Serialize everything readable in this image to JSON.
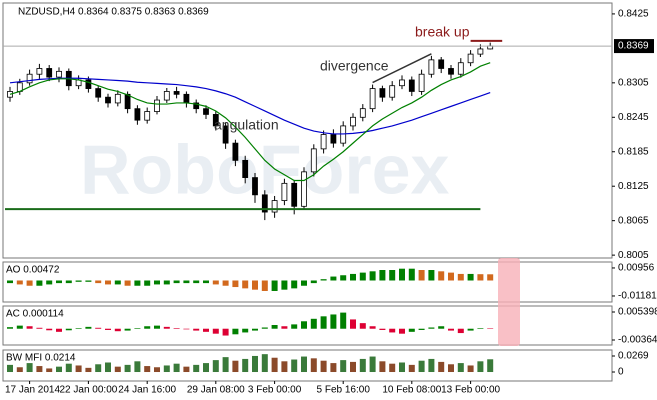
{
  "chart_data": [
    {
      "type": "candlestick",
      "title": "NZDUSD,H4 0.8364 0.8375 0.8363 0.8369",
      "watermark": "RoboForex",
      "annotations": [
        "divergence",
        "angulation",
        "break up"
      ],
      "support_level": 0.8085,
      "breakout_level": 0.8378,
      "current_price": 0.8369,
      "ylim": [
        0.8,
        0.8444
      ],
      "yticks": [
        0.8425,
        0.8305,
        0.8245,
        0.8185,
        0.8125,
        0.8065,
        0.8005
      ],
      "open": [
        0.828,
        0.829,
        0.8305,
        0.832,
        0.833,
        0.8315,
        0.8325,
        0.83,
        0.831,
        0.8295,
        0.828,
        0.827,
        0.8285,
        0.826,
        0.824,
        0.8255,
        0.8275,
        0.829,
        0.8285,
        0.827,
        0.826,
        0.825,
        0.823,
        0.82,
        0.817,
        0.814,
        0.811,
        0.808,
        0.81,
        0.813,
        0.809,
        0.815,
        0.819,
        0.8215,
        0.82,
        0.823,
        0.8245,
        0.826,
        0.8295,
        0.828,
        0.83,
        0.831,
        0.829,
        0.832,
        0.8345,
        0.833,
        0.832,
        0.834,
        0.8355,
        0.8364
      ],
      "high": [
        0.8298,
        0.8312,
        0.8328,
        0.8338,
        0.8336,
        0.8332,
        0.833,
        0.8318,
        0.8316,
        0.83,
        0.8286,
        0.8292,
        0.829,
        0.8266,
        0.8262,
        0.8282,
        0.8296,
        0.8298,
        0.829,
        0.8276,
        0.8266,
        0.8256,
        0.8236,
        0.8206,
        0.8178,
        0.8148,
        0.8118,
        0.8108,
        0.8138,
        0.8136,
        0.8158,
        0.8198,
        0.8222,
        0.8224,
        0.8238,
        0.8252,
        0.8268,
        0.8302,
        0.83,
        0.8308,
        0.8318,
        0.8316,
        0.8328,
        0.8352,
        0.835,
        0.8336,
        0.8348,
        0.8362,
        0.8372,
        0.8375
      ],
      "low": [
        0.8272,
        0.8284,
        0.83,
        0.8312,
        0.8308,
        0.8306,
        0.8292,
        0.8294,
        0.8288,
        0.8272,
        0.8262,
        0.8264,
        0.8252,
        0.8232,
        0.8234,
        0.825,
        0.827,
        0.8278,
        0.8262,
        0.8252,
        0.8242,
        0.8222,
        0.819,
        0.816,
        0.813,
        0.8096,
        0.8066,
        0.807,
        0.8092,
        0.8076,
        0.8084,
        0.8142,
        0.8182,
        0.8192,
        0.8194,
        0.8222,
        0.8238,
        0.8254,
        0.8272,
        0.8274,
        0.8294,
        0.8282,
        0.8284,
        0.8314,
        0.8322,
        0.8312,
        0.8314,
        0.8334,
        0.835,
        0.8363
      ],
      "close": [
        0.829,
        0.8305,
        0.832,
        0.833,
        0.8315,
        0.8325,
        0.83,
        0.831,
        0.8295,
        0.828,
        0.827,
        0.8285,
        0.826,
        0.824,
        0.8255,
        0.8275,
        0.829,
        0.8285,
        0.827,
        0.826,
        0.825,
        0.823,
        0.82,
        0.817,
        0.814,
        0.811,
        0.808,
        0.81,
        0.813,
        0.809,
        0.815,
        0.819,
        0.8215,
        0.82,
        0.823,
        0.8245,
        0.826,
        0.8295,
        0.828,
        0.83,
        0.831,
        0.829,
        0.832,
        0.8345,
        0.833,
        0.832,
        0.834,
        0.8355,
        0.8364,
        0.8369
      ],
      "series": [
        {
          "color": "#0000cc",
          "values": [
            0.8305,
            0.8307,
            0.8309,
            0.8311,
            0.8312,
            0.8313,
            0.8313,
            0.8313,
            0.8312,
            0.8311,
            0.831,
            0.8309,
            0.8308,
            0.8306,
            0.8305,
            0.8304,
            0.8303,
            0.8302,
            0.83,
            0.8298,
            0.8295,
            0.8291,
            0.8286,
            0.828,
            0.8272,
            0.8264,
            0.8256,
            0.8248,
            0.824,
            0.8233,
            0.8226,
            0.8221,
            0.8218,
            0.8216,
            0.8216,
            0.8217,
            0.8219,
            0.8222,
            0.8226,
            0.823,
            0.8235,
            0.824,
            0.8246,
            0.8252,
            0.8258,
            0.8264,
            0.827,
            0.8276,
            0.8282,
            0.8288
          ]
        },
        {
          "color": "#008000",
          "values": [
            0.8285,
            0.829,
            0.8298,
            0.8305,
            0.831,
            0.8312,
            0.8312,
            0.831,
            0.8306,
            0.83,
            0.8294,
            0.829,
            0.8284,
            0.8276,
            0.827,
            0.8268,
            0.8268,
            0.827,
            0.827,
            0.8268,
            0.8264,
            0.8256,
            0.8244,
            0.8228,
            0.821,
            0.819,
            0.817,
            0.8155,
            0.8145,
            0.8135,
            0.8135,
            0.8145,
            0.816,
            0.8172,
            0.8185,
            0.82,
            0.8215,
            0.823,
            0.8242,
            0.8252,
            0.8262,
            0.827,
            0.828,
            0.8292,
            0.8302,
            0.831,
            0.8316,
            0.8324,
            0.8334,
            0.834
          ]
        }
      ]
    },
    {
      "type": "histogram",
      "title": "AO 0.00472",
      "up_color": "#008000",
      "down_color": "#d2691e",
      "ylim": [
        -0.0164,
        0.0141
      ],
      "yticks": [
        0.00956,
        -0.01181
      ],
      "values": [
        -0.002,
        -0.003,
        -0.004,
        -0.004,
        -0.003,
        -0.002,
        -0.002,
        -0.001,
        -0.001,
        -0.002,
        -0.003,
        -0.003,
        -0.004,
        -0.004,
        -0.004,
        -0.003,
        -0.003,
        -0.002,
        -0.002,
        -0.002,
        -0.002,
        -0.003,
        -0.004,
        -0.005,
        -0.006,
        -0.007,
        -0.008,
        -0.008,
        -0.007,
        -0.006,
        -0.004,
        -0.002,
        0.001,
        0.003,
        0.004,
        0.005,
        0.006,
        0.007,
        0.008,
        0.008,
        0.009,
        0.009,
        0.008,
        0.008,
        0.007,
        0.006,
        0.005,
        0.005,
        0.0048,
        0.00472
      ]
    },
    {
      "type": "histogram",
      "title": "AC 0.000114",
      "up_color": "#008000",
      "down_color": "#dd0033",
      "ylim": [
        -0.00525,
        0.00733
      ],
      "yticks": [
        0.005398,
        -0.00364
      ],
      "values": [
        0.0005,
        0.001,
        0.0008,
        0.0003,
        -0.0005,
        -0.001,
        -0.0005,
        0.0002,
        0.0006,
        0.0003,
        -0.0004,
        -0.0008,
        -0.0006,
        0.0002,
        0.0008,
        0.001,
        0.0006,
        0.0002,
        -0.0002,
        -0.0006,
        -0.001,
        -0.0016,
        -0.0022,
        -0.0018,
        -0.0012,
        -0.0006,
        0.0004,
        0.0012,
        0.0008,
        0.0014,
        0.0024,
        0.0032,
        0.004,
        0.0046,
        0.0052,
        0.003,
        0.0018,
        0.0008,
        -0.0004,
        -0.0012,
        -0.0016,
        -0.001,
        -0.0004,
        0.0004,
        0.0008,
        -0.0006,
        -0.0014,
        -0.0006,
        0.0002,
        0.000114
      ]
    },
    {
      "type": "histogram",
      "title": "BW MFI 0.0214",
      "up_color": "#3a7a3a",
      "down_color": "#8b4a2a",
      "ylim": [
        -0.0151,
        0.037
      ],
      "yticks": [
        0.0269,
        0
      ],
      "categories": [
        null,
        null,
        "17 Jan 2014",
        null,
        null,
        null,
        null,
        null,
        "22 Jan 00:00",
        null,
        null,
        null,
        null,
        null,
        "24 Jan 16:00",
        null,
        null,
        null,
        null,
        null,
        null,
        "29 Jan 08:00",
        null,
        null,
        null,
        null,
        null,
        "3 Feb 00:00",
        null,
        null,
        null,
        null,
        null,
        null,
        "5 Feb 16:00",
        null,
        null,
        null,
        null,
        null,
        null,
        "10 Feb 08:00",
        null,
        null,
        null,
        null,
        null,
        "13 Feb 00:00",
        null,
        null
      ],
      "values": [
        0.012,
        0.008,
        0.015,
        0.01,
        0.006,
        0.009,
        0.014,
        0.011,
        0.007,
        0.013,
        0.016,
        0.009,
        0.012,
        0.018,
        0.01,
        0.008,
        0.011,
        0.014,
        0.009,
        0.012,
        0.015,
        0.02,
        0.025,
        0.019,
        0.022,
        0.027,
        0.03,
        0.024,
        0.018,
        0.021,
        0.026,
        0.023,
        0.019,
        0.015,
        0.02,
        0.017,
        0.022,
        0.026,
        0.018,
        0.014,
        0.016,
        0.012,
        0.019,
        0.022,
        0.017,
        0.013,
        0.015,
        0.011,
        0.018,
        0.0214
      ]
    }
  ]
}
